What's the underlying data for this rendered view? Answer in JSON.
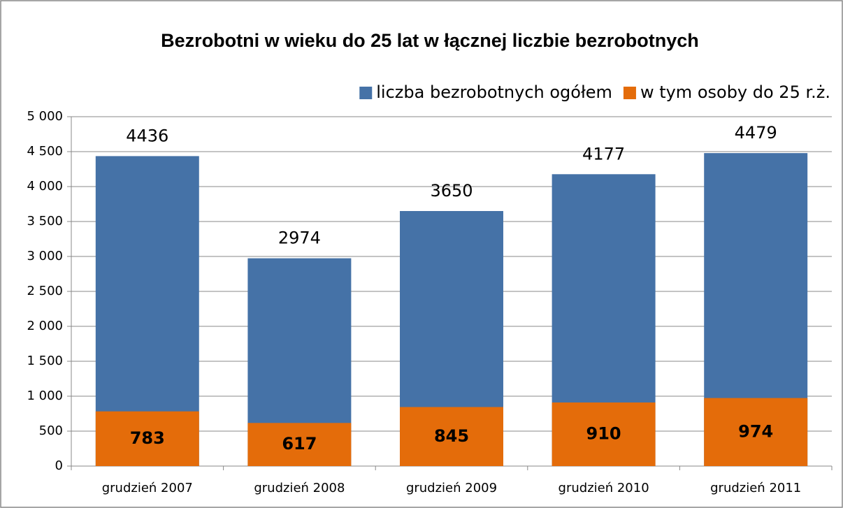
{
  "chart_data": {
    "type": "bar",
    "title": "Bezrobotni w wieku do 25 lat w łącznej liczbie bezrobotnych",
    "categories": [
      "grudzień 2007",
      "grudzień 2008",
      "grudzień 2009",
      "grudzień 2010",
      "grudzień 2011"
    ],
    "series": [
      {
        "name": "liczba bezrobotnych ogółem",
        "color": "#4572a7",
        "values": [
          4436,
          2974,
          3650,
          4177,
          4479
        ]
      },
      {
        "name": "w tym osoby do 25 r.ż.",
        "color": "#e46c0a",
        "values": [
          783,
          617,
          845,
          910,
          974
        ]
      }
    ],
    "ylim": [
      0,
      5000
    ],
    "yticks": [
      0,
      500,
      {
        "value": 1000,
        "label": "1 000"
      },
      {
        "value": 1500,
        "label": "1 500"
      },
      {
        "value": 2000,
        "label": "2 000"
      },
      {
        "value": 2500,
        "label": "2 500"
      },
      {
        "value": 3000,
        "label": "3 000"
      },
      {
        "value": 3500,
        "label": "3 500"
      },
      {
        "value": 4000,
        "label": "4 000"
      },
      {
        "value": 4500,
        "label": "4 500"
      },
      {
        "value": 5000,
        "label": "5 000"
      }
    ],
    "grid": true,
    "legend": "top-right"
  }
}
